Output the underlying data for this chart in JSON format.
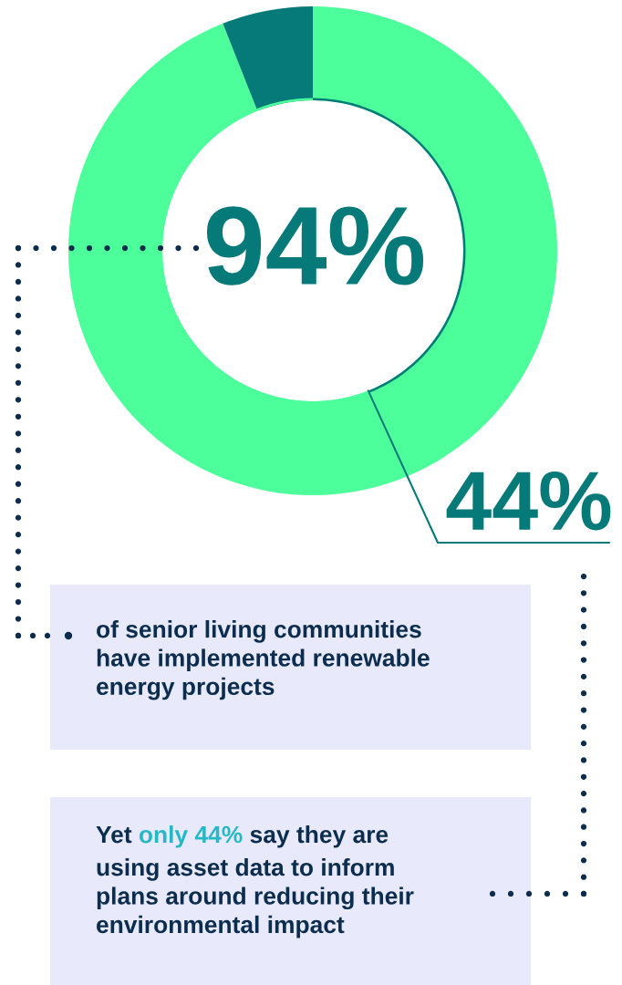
{
  "chart_data": {
    "type": "donut",
    "categories": [
      null,
      null
    ],
    "series": [
      {
        "values": [
          94,
          6
        ],
        "colors": [
          "#4cff9a",
          "#057a78"
        ]
      },
      {
        "values": [
          44,
          56
        ],
        "colors": [
          "#057a78",
          "#4cff9a"
        ]
      }
    ],
    "legend": false,
    "annotations": [
      "94%",
      "44%",
      "of senior living communities\nhave implemented renewable\nenergy projects",
      "Yet ",
      "only 44%",
      " say they are\nusing asset data to inform\nplans around reducing their\nenvironmental impact"
    ]
  }
}
